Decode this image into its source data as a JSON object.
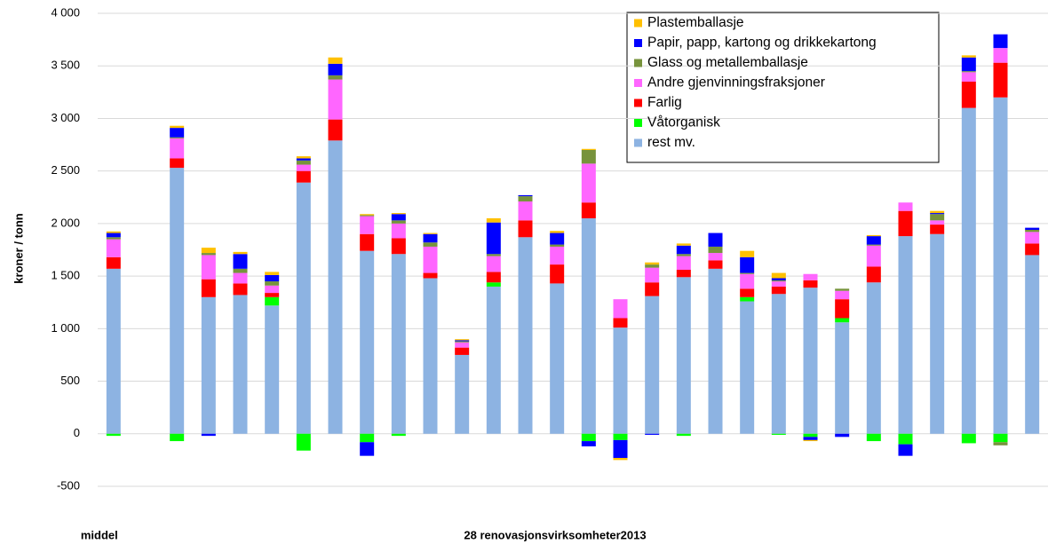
{
  "chart_data": {
    "type": "stacked-bar",
    "ylabel": "kroner / tonn",
    "xlabel": "28 renovasjonsvirksomheter2013",
    "categories": [
      "middel",
      null,
      null,
      null,
      null,
      null,
      null,
      null,
      null,
      null,
      null,
      null,
      null,
      null,
      null,
      null,
      null,
      null,
      null,
      null,
      null,
      null,
      null,
      null,
      null,
      null,
      null,
      null,
      null,
      null
    ],
    "ylim": [
      -500,
      4000
    ],
    "yticks": [
      -500,
      0,
      500,
      {
        "value": 1000,
        "label": "1 000"
      },
      {
        "value": 1500,
        "label": "1 500"
      },
      {
        "value": 2000,
        "label": "2 000"
      },
      {
        "value": 2500,
        "label": "2 500"
      },
      {
        "value": 3000,
        "label": "3 000"
      },
      {
        "value": 3500,
        "label": "3 500"
      },
      {
        "value": 4000,
        "label": "4 000"
      }
    ],
    "grid": true,
    "legend": "top-right",
    "series": [
      {
        "name": "rest mv.",
        "color": "#8db3e2",
        "values": [
          1570,
          null,
          2530,
          1300,
          1320,
          1220,
          2390,
          2790,
          1740,
          1710,
          1480,
          750,
          1400,
          1870,
          1430,
          2050,
          1010,
          1310,
          1490,
          1570,
          1260,
          1330,
          1390,
          1060,
          1440,
          1880,
          1900,
          3100,
          3200,
          1700
        ]
      },
      {
        "name": "Våtorganisk",
        "color": "#00ff00",
        "values": [
          -20,
          null,
          -70,
          0,
          0,
          80,
          -160,
          0,
          -80,
          -20,
          0,
          0,
          40,
          0,
          0,
          -70,
          -60,
          0,
          -20,
          0,
          40,
          -10,
          -30,
          40,
          -70,
          -100,
          0,
          -90,
          -80,
          0
        ]
      },
      {
        "name": "Farlig",
        "color": "#ff0000",
        "values": [
          110,
          null,
          90,
          170,
          110,
          40,
          110,
          200,
          160,
          150,
          50,
          70,
          100,
          160,
          180,
          150,
          90,
          130,
          70,
          80,
          80,
          70,
          70,
          180,
          150,
          240,
          90,
          250,
          330,
          110
        ]
      },
      {
        "name": "Andre gjenvinningsfraksjoner",
        "color": "#ff66ff",
        "values": [
          170,
          null,
          190,
          230,
          100,
          70,
          60,
          380,
          170,
          140,
          250,
          50,
          150,
          180,
          170,
          370,
          180,
          140,
          130,
          70,
          140,
          50,
          60,
          80,
          200,
          80,
          40,
          90,
          140,
          110
        ]
      },
      {
        "name": "Glass og metallemballasje",
        "color": "#77933c",
        "values": [
          20,
          null,
          10,
          20,
          40,
          40,
          40,
          40,
          10,
          30,
          40,
          10,
          20,
          50,
          20,
          130,
          0,
          30,
          20,
          60,
          10,
          10,
          0,
          20,
          10,
          0,
          60,
          10,
          -30,
          20
        ]
      },
      {
        "name": "Papir, papp, kartong og drikkekartong",
        "color": "#0000ff",
        "values": [
          40,
          null,
          90,
          -20,
          140,
          60,
          20,
          110,
          -130,
          60,
          80,
          10,
          300,
          10,
          110,
          -50,
          -170,
          -10,
          80,
          130,
          150,
          20,
          -30,
          -30,
          80,
          -110,
          10,
          130,
          130,
          20
        ]
      },
      {
        "name": "Plastemballasje",
        "color": "#ffc000",
        "values": [
          15,
          null,
          20,
          50,
          20,
          30,
          20,
          60,
          10,
          10,
          10,
          10,
          40,
          0,
          20,
          10,
          -20,
          20,
          20,
          0,
          60,
          50,
          -10,
          0,
          10,
          0,
          20,
          20,
          0,
          0
        ]
      }
    ]
  }
}
